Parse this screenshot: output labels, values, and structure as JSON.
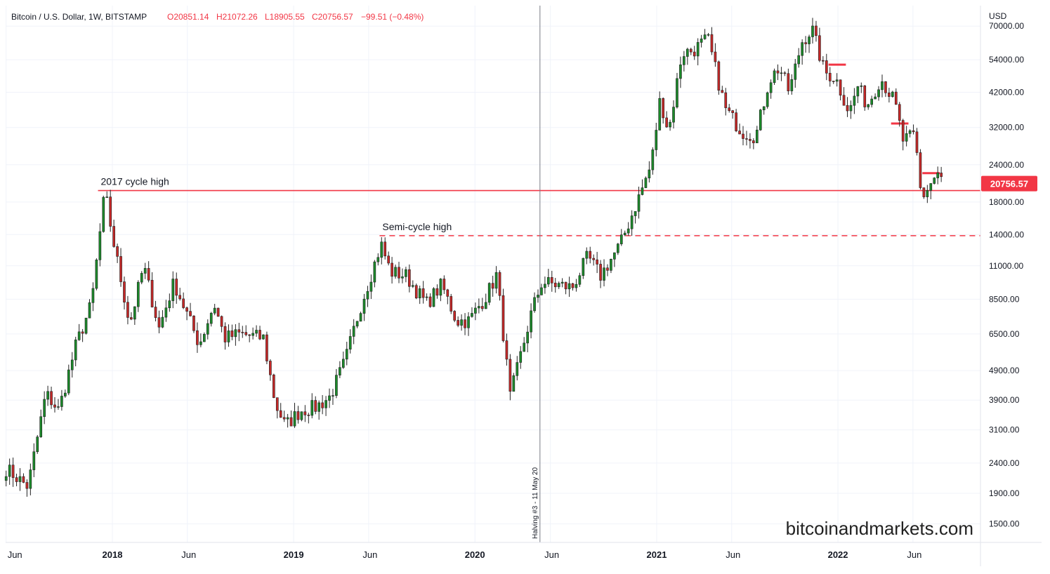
{
  "header": {
    "symbol": "Bitcoin / U.S. Dollar, 1W, BITSTAMP",
    "open": "O20851.14",
    "high": "H21072.26",
    "low": "L18905.55",
    "close": "C20756.57",
    "change": "−99.51 (−0.48%)"
  },
  "price_axis": {
    "currency": "USD",
    "last_price": "20756.57"
  },
  "watermark": "bitcoinandmarkets.com",
  "colors": {
    "up": "#26a69a",
    "up_body": "#1b8a2a",
    "down": "#c62828",
    "level_line": "#f23645",
    "last_price_bg": "#f23645",
    "halving_line": "#787b86"
  },
  "chart_data": {
    "type": "candlestick",
    "title": "Bitcoin / U.S. Dollar, 1W, BITSTAMP",
    "y_scale": "log",
    "ylim": [
      1300,
      82000
    ],
    "y_ticks": [
      1500,
      1900,
      2400,
      3100,
      3900,
      4900,
      6500,
      8500,
      11000,
      14000,
      18000,
      24000,
      32000,
      42000,
      54000,
      70000
    ],
    "y_tick_labels": [
      "1500.00",
      "1900.00",
      "2400.00",
      "3100.00",
      "3900.00",
      "4900.00",
      "6500.00",
      "8500.00",
      "11000.00",
      "14000.00",
      "18000.00",
      "24000.00",
      "32000.00",
      "42000.00",
      "54000.00",
      "70000.00"
    ],
    "x_ticks": [
      "Jun",
      "2018",
      "Jun",
      "2019",
      "Jun",
      "2020",
      "Jun",
      "2021",
      "Jun",
      "2022",
      "Jun"
    ],
    "x_tick_dates": [
      "2017-06-01",
      "2018-01-01",
      "2018-06-01",
      "2019-01-01",
      "2019-06-01",
      "2020-01-01",
      "2020-06-01",
      "2021-01-01",
      "2021-06-01",
      "2022-01-01",
      "2022-06-01"
    ],
    "x_range": [
      "2017-05-31",
      "2022-10-15"
    ],
    "anchors": [
      [
        "2017-06-01",
        2300
      ],
      [
        "2017-07-15",
        2000
      ],
      [
        "2017-08-20",
        4100
      ],
      [
        "2017-09-15",
        3600
      ],
      [
        "2017-10-20",
        6000
      ],
      [
        "2017-11-20",
        8200
      ],
      [
        "2017-12-17",
        19600
      ],
      [
        "2018-01-01",
        13800
      ],
      [
        "2018-02-05",
        7000
      ],
      [
        "2018-03-05",
        11000
      ],
      [
        "2018-04-05",
        6800
      ],
      [
        "2018-05-05",
        9700
      ],
      [
        "2018-06-25",
        6000
      ],
      [
        "2018-07-25",
        8200
      ],
      [
        "2018-08-15",
        6300
      ],
      [
        "2018-09-15",
        6500
      ],
      [
        "2018-11-01",
        6300
      ],
      [
        "2018-11-25",
        3800
      ],
      [
        "2018-12-15",
        3200
      ],
      [
        "2019-01-15",
        3600
      ],
      [
        "2019-02-15",
        3700
      ],
      [
        "2019-03-15",
        4000
      ],
      [
        "2019-04-15",
        5300
      ],
      [
        "2019-05-15",
        8000
      ],
      [
        "2019-06-26",
        13000
      ],
      [
        "2019-07-15",
        10500
      ],
      [
        "2019-08-15",
        10200
      ],
      [
        "2019-09-25",
        8200
      ],
      [
        "2019-10-26",
        9500
      ],
      [
        "2019-11-25",
        7200
      ],
      [
        "2019-12-20",
        7200
      ],
      [
        "2020-01-25",
        8800
      ],
      [
        "2020-02-14",
        10300
      ],
      [
        "2020-03-12",
        4000
      ],
      [
        "2020-04-25",
        7800
      ],
      [
        "2020-05-15",
        9700
      ],
      [
        "2020-07-15",
        9300
      ],
      [
        "2020-08-15",
        11800
      ],
      [
        "2020-09-10",
        10200
      ],
      [
        "2020-10-20",
        13000
      ],
      [
        "2020-11-25",
        18500
      ],
      [
        "2020-12-21",
        24000
      ],
      [
        "2021-01-08",
        40000
      ],
      [
        "2021-01-25",
        31000
      ],
      [
        "2021-02-21",
        57000
      ],
      [
        "2021-03-15",
        58000
      ],
      [
        "2021-04-14",
        63500
      ],
      [
        "2021-05-19",
        37000
      ],
      [
        "2021-06-22",
        31000
      ],
      [
        "2021-07-20",
        30000
      ],
      [
        "2021-08-15",
        46000
      ],
      [
        "2021-09-05",
        51000
      ],
      [
        "2021-09-25",
        42000
      ],
      [
        "2021-10-20",
        62000
      ],
      [
        "2021-11-10",
        68500
      ],
      [
        "2021-12-05",
        49000
      ],
      [
        "2021-12-27",
        47000
      ],
      [
        "2022-01-24",
        36000
      ],
      [
        "2022-02-10",
        44000
      ],
      [
        "2022-03-01",
        38000
      ],
      [
        "2022-03-28",
        47000
      ],
      [
        "2022-04-25",
        39000
      ],
      [
        "2022-05-12",
        29000
      ],
      [
        "2022-06-05",
        30000
      ],
      [
        "2022-06-18",
        18500
      ],
      [
        "2022-07-20",
        22500
      ],
      [
        "2022-08-01",
        20756.57
      ]
    ],
    "annotations": [
      {
        "label": "2017 cycle high",
        "value": 19666,
        "style": "solid",
        "from": "2017-12-03",
        "to": "2022-10-15"
      },
      {
        "label": "Semi-cycle high",
        "value": 13880,
        "style": "dashed",
        "from": "2019-06-23",
        "to": "2022-10-15"
      }
    ],
    "vertical_markers": [
      {
        "label": "Halving #3 - 11 May 20",
        "date": "2020-05-11"
      }
    ],
    "short_levels": [
      {
        "value": 52000,
        "from": "2021-12-13",
        "to": "2022-01-17"
      },
      {
        "value": 33000,
        "from": "2022-04-18",
        "to": "2022-05-23"
      },
      {
        "value": 22500,
        "from": "2022-06-20",
        "to": "2022-07-25"
      }
    ]
  }
}
